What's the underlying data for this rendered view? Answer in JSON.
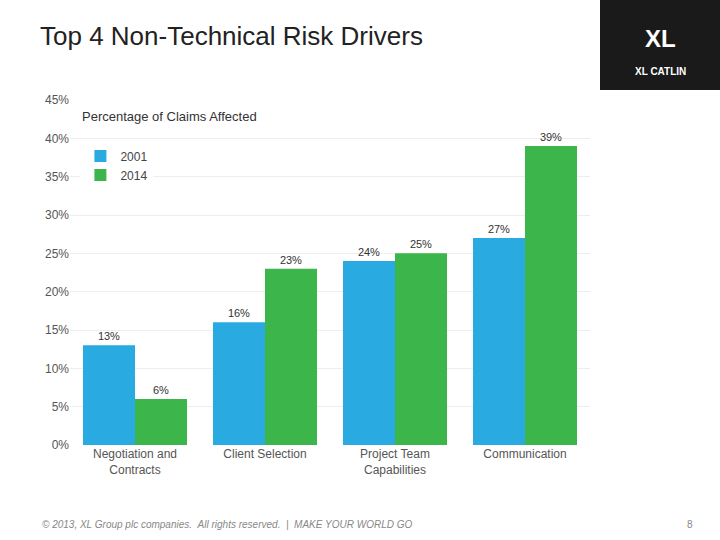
{
  "chart_data": {
    "type": "bar",
    "title": "Top 4 Non-Technical Risk Drivers",
    "subtitle": "Percentage of Claims Affected",
    "categories": [
      "Negotiation and\nContracts",
      "Client Selection",
      "Project Team\nCapabilities",
      "Communication"
    ],
    "series": [
      {
        "name": "2001",
        "color": "#29ABE2",
        "values": [
          13,
          16,
          24,
          27
        ],
        "value_labels": [
          "13%",
          "16%",
          "24%",
          "27%"
        ]
      },
      {
        "name": "2014",
        "color": "#3CB54A",
        "values": [
          6,
          23,
          25,
          39
        ],
        "value_labels": [
          "6%",
          "23%",
          "25%",
          "39%"
        ]
      }
    ],
    "ylim": [
      0,
      45
    ],
    "yticks": [
      {
        "value": 0,
        "label": "0%"
      },
      {
        "value": 5,
        "label": "5%"
      },
      {
        "value": 10,
        "label": "10%"
      },
      {
        "value": 15,
        "label": "15%"
      },
      {
        "value": 20,
        "label": "20%"
      },
      {
        "value": 25,
        "label": "25%"
      },
      {
        "value": 30,
        "label": "30%"
      },
      {
        "value": 35,
        "label": "35%"
      },
      {
        "value": 40,
        "label": "40%"
      },
      {
        "value": 45,
        "label": "45%"
      }
    ],
    "grid": true,
    "legend": "upper left",
    "data_labels": true,
    "annotations": [
      "© 2013, XL Group plc companies.  All rights reserved.  |  MAKE YOUR WORLD GO",
      "8",
      "XL",
      "XL CATLIN"
    ]
  }
}
